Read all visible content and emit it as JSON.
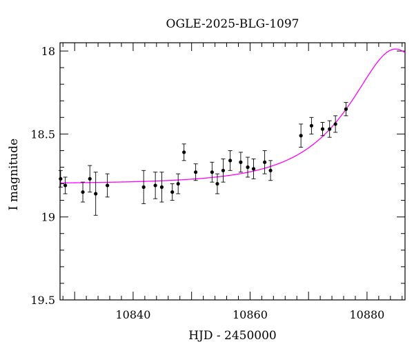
{
  "chart_data": {
    "type": "scatter",
    "title": "OGLE-2025-BLG-1097",
    "xlabel": "HJD - 2450000",
    "ylabel": "I magnitude",
    "xlim": [
      10827.5,
      10886.5
    ],
    "ylim": [
      19.5,
      17.95
    ],
    "y_inverted": true,
    "x_ticks": [
      10840,
      10860,
      10880
    ],
    "x_tick_labels": [
      "10840",
      "10860",
      "10880"
    ],
    "y_ticks": [
      18,
      18.5,
      19,
      19.5
    ],
    "y_tick_labels": [
      "18",
      "18.5",
      "19",
      "19.5"
    ],
    "grid": false,
    "colors": {
      "points": "#000000",
      "model": "#ff00ff"
    },
    "series": [
      {
        "type": "scatter",
        "x": [
          10827.6,
          10828.4,
          10831.4,
          10832.6,
          10833.6,
          10835.6,
          10841.8,
          10843.8,
          10844.9,
          10846.7,
          10847.7,
          10848.7,
          10850.7,
          10853.5,
          10854.4,
          10855.4,
          10856.6,
          10858.4,
          10859.6,
          10860.6,
          10862.5,
          10863.5,
          10868.7,
          10870.5,
          10872.4,
          10873.6,
          10874.6,
          10876.4
        ],
        "y": [
          18.77,
          18.81,
          18.85,
          18.77,
          18.86,
          18.81,
          18.82,
          18.81,
          18.82,
          18.85,
          18.8,
          18.61,
          18.73,
          18.73,
          18.8,
          18.72,
          18.66,
          18.67,
          18.7,
          18.71,
          18.67,
          18.72,
          18.51,
          18.45,
          18.47,
          18.47,
          18.44,
          18.35
        ],
        "yerr": [
          0.05,
          0.05,
          0.06,
          0.08,
          0.13,
          0.07,
          0.1,
          0.08,
          0.09,
          0.05,
          0.06,
          0.05,
          0.05,
          0.06,
          0.06,
          0.07,
          0.06,
          0.06,
          0.06,
          0.06,
          0.07,
          0.06,
          0.07,
          0.05,
          0.04,
          0.05,
          0.05,
          0.04
        ]
      },
      {
        "type": "line",
        "model": "microlensing",
        "base_mag": 18.8,
        "t0": 10884.9,
        "tE": 13.5,
        "u0": 0.52
      }
    ]
  }
}
